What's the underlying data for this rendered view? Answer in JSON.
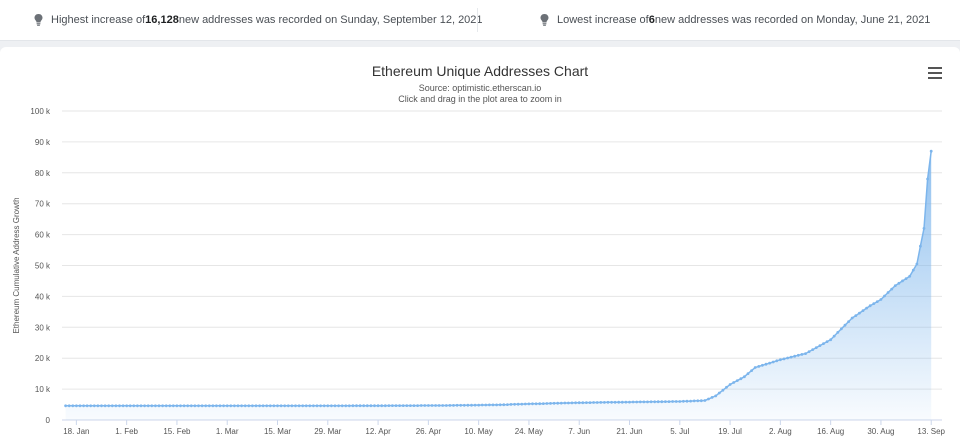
{
  "stats": {
    "highest": {
      "prefix": "Highest increase of ",
      "value": "16,128",
      "suffix": " new addresses was recorded on Sunday, September 12, 2021"
    },
    "lowest": {
      "prefix": "Lowest increase of ",
      "value": "6",
      "suffix": " new addresses was recorded on Monday, June 21, 2021"
    },
    "icon": "lightbulb-icon"
  },
  "menu_icon": "hamburger-menu-icon",
  "colors": {
    "series_line": "#7cb5ec",
    "series_fill": "#7cb5ec",
    "grid": "#e6e6e6"
  },
  "chart_data": {
    "type": "area",
    "title": "Ethereum Unique Addresses Chart",
    "subtitle": "Source: optimistic.etherscan.io",
    "subtitle2": "Click and drag in the plot area to zoom in",
    "xlabel": "",
    "ylabel": "Ethereum Cumulative Address Growth",
    "ylim": [
      0,
      100000
    ],
    "yticks": [
      0,
      10000,
      20000,
      30000,
      40000,
      50000,
      60000,
      70000,
      80000,
      90000,
      100000
    ],
    "ytick_labels": [
      "0",
      "10 k",
      "20 k",
      "30 k",
      "40 k",
      "50 k",
      "60 k",
      "70 k",
      "80 k",
      "90 k",
      "100 k"
    ],
    "xlim": [
      "2021-01-14",
      "2021-09-16"
    ],
    "xticks": [
      "2021-01-18",
      "2021-02-01",
      "2021-02-15",
      "2021-03-01",
      "2021-03-15",
      "2021-03-29",
      "2021-04-12",
      "2021-04-26",
      "2021-05-10",
      "2021-05-24",
      "2021-06-07",
      "2021-06-21",
      "2021-07-05",
      "2021-07-19",
      "2021-08-02",
      "2021-08-16",
      "2021-08-30",
      "2021-09-13"
    ],
    "xtick_labels": [
      "18. Jan",
      "1. Feb",
      "15. Feb",
      "1. Mar",
      "15. Mar",
      "29. Mar",
      "12. Apr",
      "26. Apr",
      "10. May",
      "24. May",
      "7. Jun",
      "21. Jun",
      "5. Jul",
      "19. Jul",
      "2. Aug",
      "16. Aug",
      "30. Aug",
      "13. Sep"
    ],
    "grid": true,
    "legend": "none",
    "series": [
      {
        "points": [
          [
            "2021-01-15",
            4600
          ],
          [
            "2021-02-01",
            4600
          ],
          [
            "2021-03-01",
            4600
          ],
          [
            "2021-04-01",
            4600
          ],
          [
            "2021-05-01",
            4700
          ],
          [
            "2021-05-15",
            4900
          ],
          [
            "2021-05-24",
            5200
          ],
          [
            "2021-06-07",
            5600
          ],
          [
            "2021-06-21",
            5800
          ],
          [
            "2021-07-05",
            6000
          ],
          [
            "2021-07-12",
            6300
          ],
          [
            "2021-07-15",
            7800
          ],
          [
            "2021-07-19",
            11500
          ],
          [
            "2021-07-23",
            14000
          ],
          [
            "2021-07-26",
            17000
          ],
          [
            "2021-08-02",
            19500
          ],
          [
            "2021-08-09",
            21500
          ],
          [
            "2021-08-16",
            26000
          ],
          [
            "2021-08-22",
            33000
          ],
          [
            "2021-08-27",
            37000
          ],
          [
            "2021-08-30",
            39000
          ],
          [
            "2021-09-03",
            43500
          ],
          [
            "2021-09-07",
            46500
          ],
          [
            "2021-09-09",
            50500
          ],
          [
            "2021-09-11",
            62000
          ],
          [
            "2021-09-12",
            78000
          ],
          [
            "2021-09-13",
            87000
          ]
        ]
      }
    ]
  }
}
